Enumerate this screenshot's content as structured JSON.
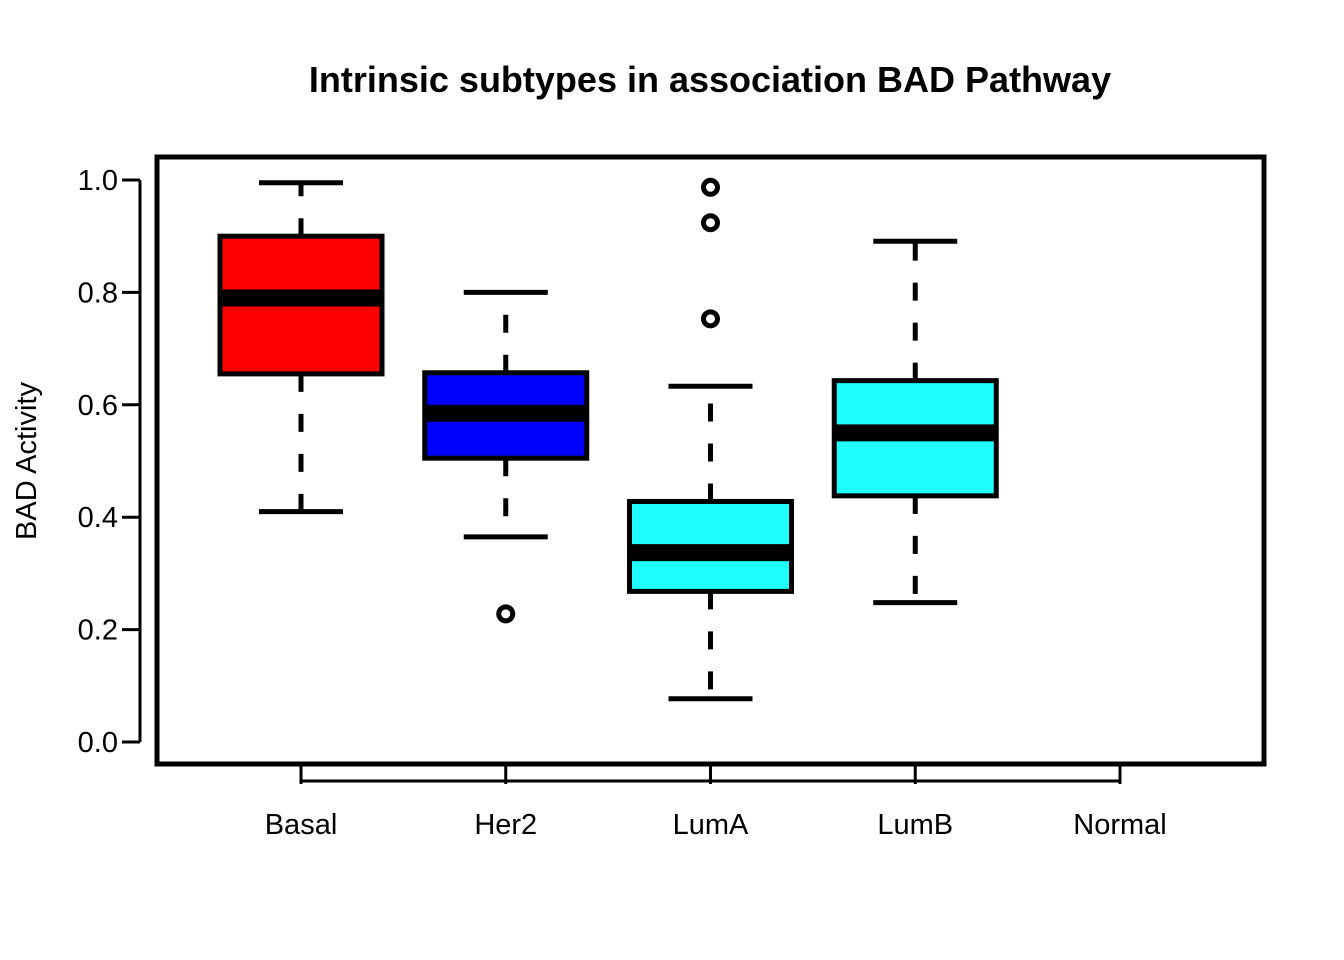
{
  "chart_data": {
    "type": "boxplot",
    "title": "Intrinsic subtypes in association BAD Pathway",
    "xlabel": "",
    "ylabel": "BAD Activity",
    "ylim": [
      0.0,
      1.0
    ],
    "y_ticks": [
      "0.0",
      "0.2",
      "0.4",
      "0.6",
      "0.8",
      "1.0"
    ],
    "categories": [
      "Basal",
      "Her2",
      "LumA",
      "LumB",
      "Normal"
    ],
    "grid": false,
    "boxes": [
      {
        "category": "Basal",
        "whisker_low": 0.41,
        "q1": 0.655,
        "median": 0.79,
        "q3": 0.9,
        "whisker_high": 0.995,
        "outliers": [],
        "color": "#ff0000"
      },
      {
        "category": "Her2",
        "whisker_low": 0.365,
        "q1": 0.505,
        "median": 0.585,
        "q3": 0.657,
        "whisker_high": 0.8,
        "outliers": [
          0.228
        ],
        "color": "#0000ff"
      },
      {
        "category": "LumA",
        "whisker_low": 0.077,
        "q1": 0.268,
        "median": 0.337,
        "q3": 0.428,
        "whisker_high": 0.633,
        "outliers": [
          0.753,
          0.924,
          0.987
        ],
        "color": "#1fffff"
      },
      {
        "category": "LumB",
        "whisker_low": 0.248,
        "q1": 0.438,
        "median": 0.55,
        "q3": 0.643,
        "whisker_high": 0.891,
        "outliers": [],
        "color": "#1fffff"
      },
      {
        "category": "Normal",
        "whisker_low": null,
        "q1": null,
        "median": null,
        "q3": null,
        "whisker_high": null,
        "outliers": [],
        "color": ""
      }
    ]
  }
}
